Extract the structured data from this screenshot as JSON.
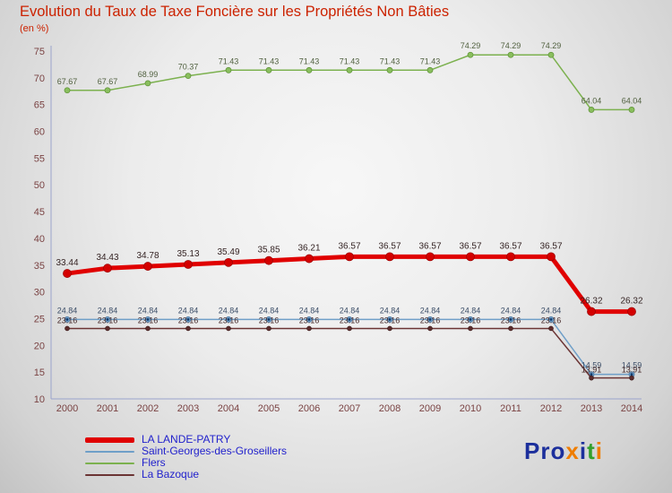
{
  "title": "Evolution du Taux de Taxe Foncière sur les Propriétés Non Bâties",
  "subtitle": "(en %)",
  "logo": {
    "letters": [
      {
        "ch": "P",
        "color": "#1c2f9c"
      },
      {
        "ch": "r",
        "color": "#1c2f9c"
      },
      {
        "ch": "o",
        "color": "#1c2f9c"
      },
      {
        "ch": "x",
        "color": "#ef7d00"
      },
      {
        "ch": "i",
        "color": "#1c2f9c"
      },
      {
        "ch": "t",
        "color": "#33a02c"
      },
      {
        "ch": "i",
        "color": "#ef7d00"
      }
    ]
  },
  "chart_data": {
    "type": "line",
    "title": "Evolution du Taux de Taxe Foncière sur les Propriétés Non Bâties",
    "ylabel": "en %",
    "x": [
      "2000",
      "2001",
      "2002",
      "2003",
      "2004",
      "2005",
      "2006",
      "2007",
      "2008",
      "2009",
      "2010",
      "2011",
      "2012",
      "2013",
      "2014"
    ],
    "ylim": [
      10,
      75
    ],
    "ytick_step": 5,
    "grid": false,
    "legend_position": "bottom-left",
    "axis_color": "#9aa3cc",
    "tick_color": "#7a4343",
    "legend_text_color": "#2222cc",
    "series": [
      {
        "name": "LA LANDE-PATRY",
        "color": "#e00000",
        "line_width": 5,
        "label_color": "#352424",
        "label_size": 10,
        "label_dy": -9,
        "marker": {
          "r": 4.5,
          "fill": "#d40000",
          "stroke": "#a00000"
        },
        "values": [
          33.44,
          34.43,
          34.78,
          35.13,
          35.49,
          35.85,
          36.21,
          36.57,
          36.57,
          36.57,
          36.57,
          36.57,
          36.57,
          26.32,
          26.32
        ]
      },
      {
        "name": "Saint-Georges-des-Groseillers",
        "color": "#6f9fc8",
        "line_width": 1.5,
        "label_color": "#3c4e68",
        "label_size": 9,
        "label_dy": -7,
        "marker": {
          "r": 3,
          "fill": "#6f9fc8",
          "stroke": "#4d7aa6",
          "inner_r": 1.4,
          "inner_fill": "#123a6b"
        },
        "values": [
          24.84,
          24.84,
          24.84,
          24.84,
          24.84,
          24.84,
          24.84,
          24.84,
          24.84,
          24.84,
          24.84,
          24.84,
          24.84,
          14.59,
          14.59
        ]
      },
      {
        "name": "Flers",
        "color": "#7cb14f",
        "line_width": 1.5,
        "label_color": "#50603f",
        "label_size": 9,
        "label_dy": -7,
        "marker": {
          "r": 3,
          "fill": "#8abf5e",
          "stroke": "#61953a"
        },
        "values": [
          67.67,
          67.67,
          68.99,
          70.37,
          71.43,
          71.43,
          71.43,
          71.43,
          71.43,
          71.43,
          74.29,
          74.29,
          74.29,
          64.04,
          64.04
        ]
      },
      {
        "name": "La Bazoque",
        "color": "#6b3434",
        "line_width": 1.5,
        "label_color": "#462a2a",
        "label_size": 9,
        "label_dy": -6,
        "marker": {
          "r": 2.4,
          "fill": "#5e2d2d",
          "stroke": "#3f1d1d"
        },
        "values": [
          23.16,
          23.16,
          23.16,
          23.16,
          23.16,
          23.16,
          23.16,
          23.16,
          23.16,
          23.16,
          23.16,
          23.16,
          23.16,
          13.91,
          13.91
        ]
      }
    ]
  }
}
